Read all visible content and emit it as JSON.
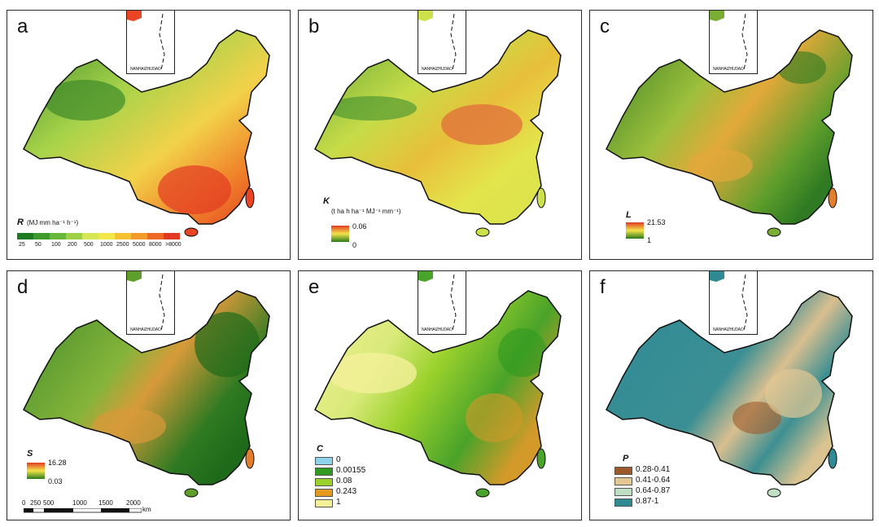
{
  "panels": {
    "a": {
      "letter": "a",
      "inset_label": "NANHAIZHUDAO",
      "legend_symbol": "R",
      "legend_unit": "(MJ mm ha⁻¹ h⁻¹)",
      "classes": [
        "25",
        "50",
        "100",
        "200",
        "500",
        "1000",
        "2500",
        "5000",
        "8000",
        ">8000"
      ],
      "class_colors": [
        "#1e7a1e",
        "#3e9b2a",
        "#68b63a",
        "#9fcf45",
        "#d5e652",
        "#f2e64a",
        "#f5c232",
        "#f29a2a",
        "#ec6a25",
        "#e23a22"
      ]
    },
    "b": {
      "letter": "b",
      "inset_label": "NANHAIZHUDAO",
      "legend_symbol": "K",
      "legend_unit": "(t ha h ha⁻¹ MJ⁻¹ mm⁻¹)",
      "max": "0.06",
      "min": "0"
    },
    "c": {
      "letter": "c",
      "inset_label": "NANHAIZHUDAO",
      "legend_symbol": "L",
      "max": "21.53",
      "min": "1"
    },
    "d": {
      "letter": "d",
      "inset_label": "NANHAIZHUDAO",
      "legend_symbol": "S",
      "max": "16.28",
      "min": "0.03",
      "scale_ticks": [
        "0",
        "250",
        "500",
        "1000",
        "1500",
        "2000"
      ],
      "scale_unit": "km"
    },
    "e": {
      "letter": "e",
      "inset_label": "NANHAIZHUDAO",
      "legend_symbol": "C",
      "items": [
        {
          "label": "0",
          "color": "#8fd3ea"
        },
        {
          "label": "0.00155",
          "color": "#2e9a22"
        },
        {
          "label": "0.08",
          "color": "#9bd12c"
        },
        {
          "label": "0.243",
          "color": "#e39a20"
        },
        {
          "label": "1",
          "color": "#f4f09a"
        }
      ]
    },
    "f": {
      "letter": "f",
      "inset_label": "NANHAIZHUDAO",
      "legend_symbol": "P",
      "items": [
        {
          "label": "0.28-0.41",
          "color": "#9c5a2c"
        },
        {
          "label": "0.41-0.64",
          "color": "#e3c894"
        },
        {
          "label": "0.64-0.87",
          "color": "#bfe0c4"
        },
        {
          "label": "0.87-1",
          "color": "#2f8a94"
        }
      ]
    }
  }
}
